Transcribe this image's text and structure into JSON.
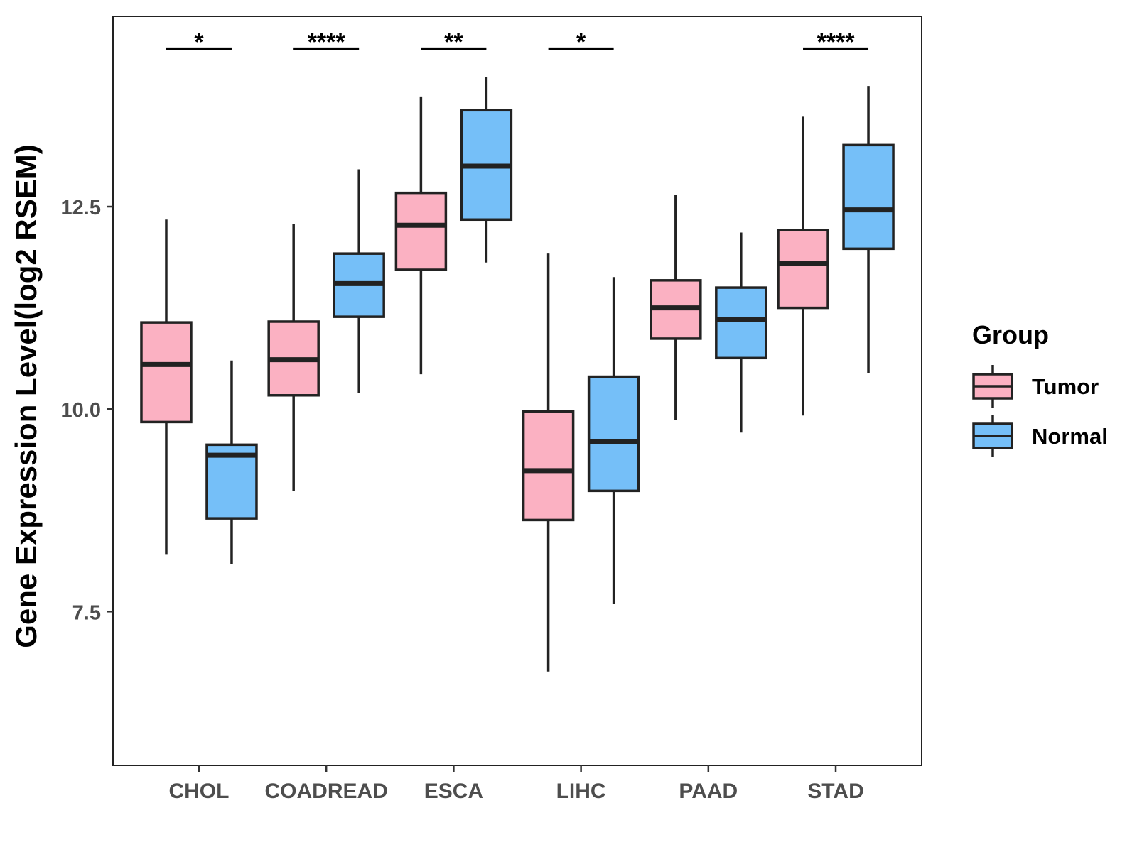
{
  "chart_data": {
    "type": "boxplot",
    "title": "",
    "xlabel": "",
    "ylabel": "Gene Expression Level(log2 RSEM)",
    "ylim": [
      5.6,
      14.85
    ],
    "yticks": [
      7.5,
      10.0,
      12.5
    ],
    "ytick_labels": [
      "7.5",
      "10.0",
      "12.5"
    ],
    "categories": [
      "CHOL",
      "COADREAD",
      "ESCA",
      "LIHC",
      "PAAD",
      "STAD"
    ],
    "legend": {
      "title": "Group",
      "placement": "right"
    },
    "series": [
      {
        "name": "Tumor",
        "color": "#FBB1C2",
        "boxes": [
          {
            "category": "CHOL",
            "min": 8.21,
            "q1": 9.84,
            "median": 10.55,
            "q3": 11.07,
            "max": 12.34
          },
          {
            "category": "COADREAD",
            "min": 8.99,
            "q1": 10.17,
            "median": 10.61,
            "q3": 11.08,
            "max": 12.29
          },
          {
            "category": "ESCA",
            "min": 10.43,
            "q1": 11.72,
            "median": 12.27,
            "q3": 12.67,
            "max": 13.86
          },
          {
            "category": "LIHC",
            "min": 6.76,
            "q1": 8.63,
            "median": 9.24,
            "q3": 9.97,
            "max": 11.92
          },
          {
            "category": "PAAD",
            "min": 9.87,
            "q1": 10.87,
            "median": 11.25,
            "q3": 11.59,
            "max": 12.64
          },
          {
            "category": "STAD",
            "min": 9.92,
            "q1": 11.25,
            "median": 11.8,
            "q3": 12.21,
            "max": 13.61
          }
        ]
      },
      {
        "name": "Normal",
        "color": "#75BFF8",
        "boxes": [
          {
            "category": "CHOL",
            "min": 8.09,
            "q1": 8.65,
            "median": 9.43,
            "q3": 9.56,
            "max": 10.6
          },
          {
            "category": "COADREAD",
            "min": 10.2,
            "q1": 11.14,
            "median": 11.55,
            "q3": 11.92,
            "max": 12.96
          },
          {
            "category": "ESCA",
            "min": 11.81,
            "q1": 12.34,
            "median": 13.0,
            "q3": 13.69,
            "max": 14.1
          },
          {
            "category": "LIHC",
            "min": 7.59,
            "q1": 8.99,
            "median": 9.6,
            "q3": 10.4,
            "max": 11.63
          },
          {
            "category": "PAAD",
            "min": 9.71,
            "q1": 10.63,
            "median": 11.11,
            "q3": 11.5,
            "max": 12.18
          },
          {
            "category": "STAD",
            "min": 10.44,
            "q1": 11.98,
            "median": 12.46,
            "q3": 13.26,
            "max": 13.99
          }
        ]
      }
    ],
    "significance": [
      {
        "category": "CHOL",
        "label": "*"
      },
      {
        "category": "COADREAD",
        "label": "****"
      },
      {
        "category": "ESCA",
        "label": "**"
      },
      {
        "category": "LIHC",
        "label": "*"
      },
      {
        "category": "PAAD",
        "label": ""
      },
      {
        "category": "STAD",
        "label": "****"
      }
    ],
    "significance_level": 14.45,
    "grid": false
  }
}
